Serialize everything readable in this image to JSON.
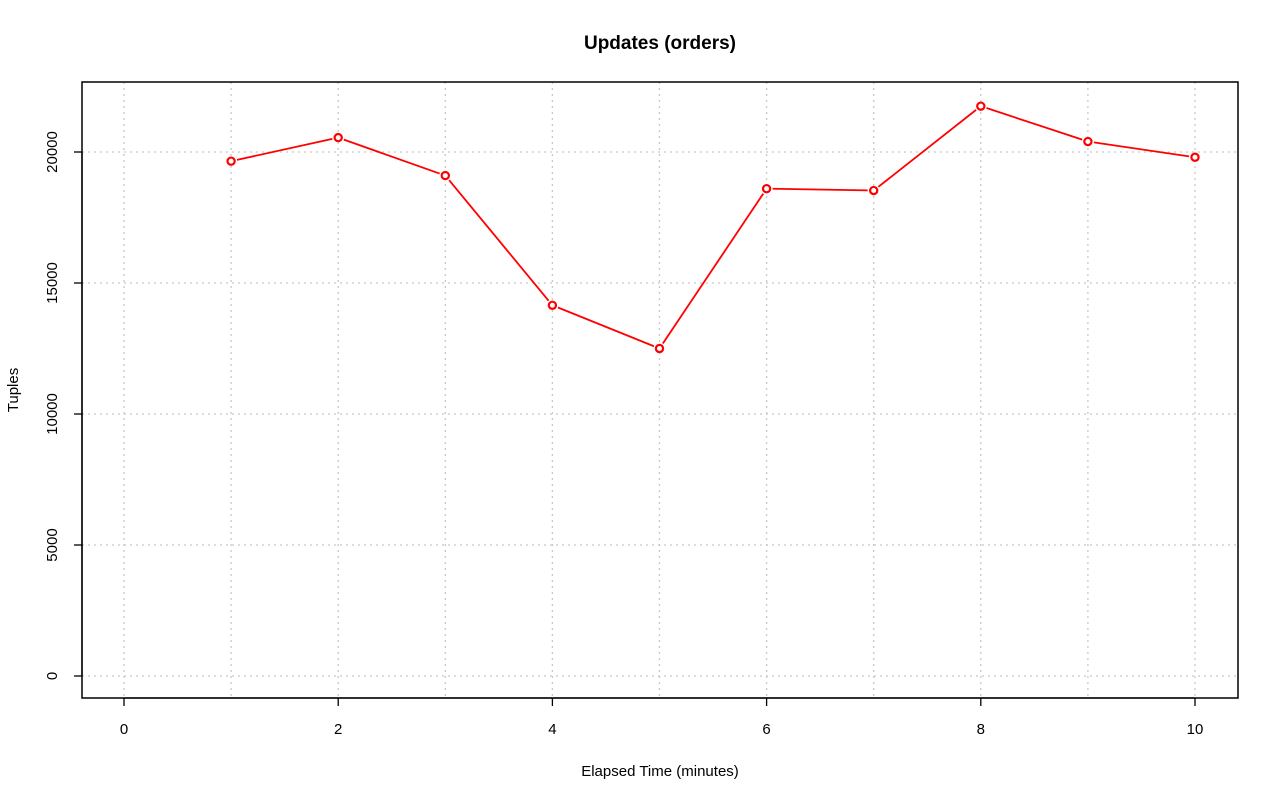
{
  "chart_data": {
    "type": "line",
    "title": "Updates (orders)",
    "xlabel": "Elapsed Time (minutes)",
    "ylabel": "Tuples",
    "xlim": [
      0,
      10
    ],
    "ylim": [
      0,
      20000
    ],
    "x_ticks": [
      0,
      2,
      4,
      6,
      8,
      10
    ],
    "y_ticks": [
      0,
      5000,
      10000,
      15000,
      20000
    ],
    "x_grid_ticks": [
      0,
      1,
      2,
      3,
      4,
      5,
      6,
      7,
      8,
      9,
      10
    ],
    "grid": true,
    "series": [
      {
        "color": "#ff0000",
        "marker": "open-circle",
        "x": [
          1,
          2,
          3,
          4,
          5,
          6,
          7,
          8,
          9,
          10
        ],
        "y": [
          19650,
          20550,
          19100,
          14150,
          12500,
          18600,
          18530,
          21750,
          20400,
          19800
        ]
      }
    ]
  }
}
